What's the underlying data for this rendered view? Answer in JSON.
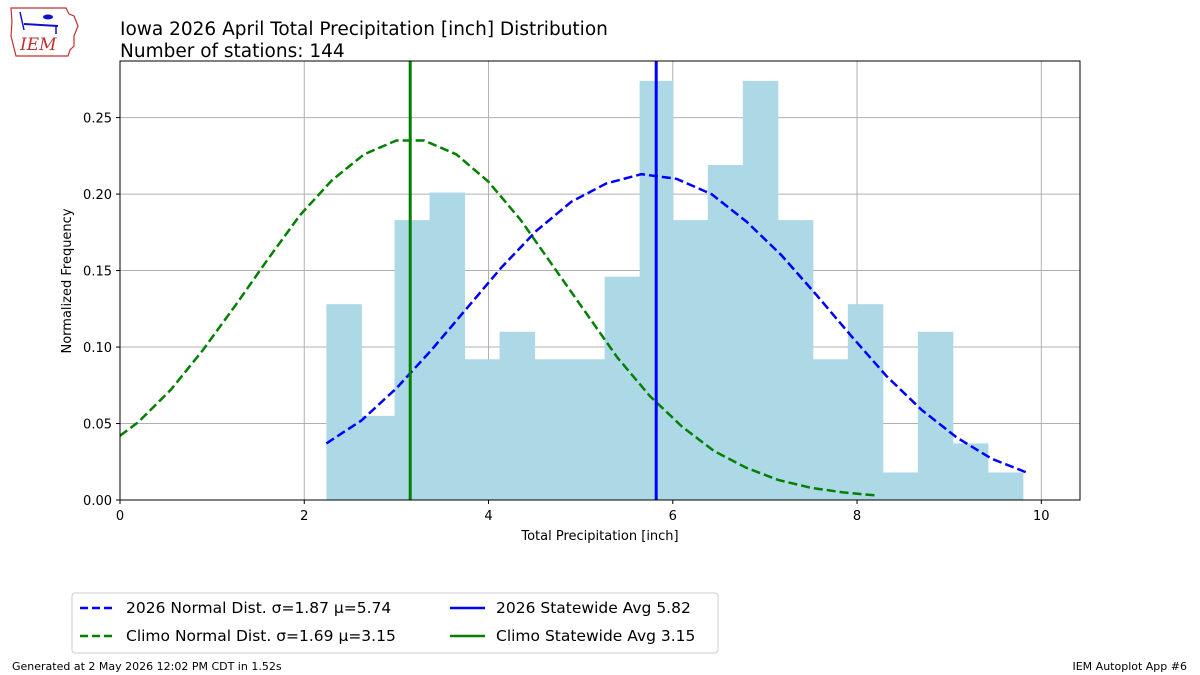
{
  "logo": {
    "text": "IEM"
  },
  "footer": {
    "left": "Generated at 2 May 2026 12:02 PM CDT in 1.52s",
    "right": "IEM Autoplot App #6"
  },
  "chart_data": {
    "type": "bar",
    "title": "Iowa 2026 April Total Precipitation [inch] Distribution",
    "subtitle": "Number of stations: 144",
    "xlabel": "Total Precipitation [inch]",
    "ylabel": "Normalized Frequency",
    "xlim": [
      0,
      10.42
    ],
    "ylim": [
      0,
      0.287
    ],
    "xticks": [
      0,
      2,
      4,
      6,
      8,
      10
    ],
    "yticks": [
      0.0,
      0.05,
      0.1,
      0.15,
      0.2,
      0.25
    ],
    "ytick_labels": [
      "0.00",
      "0.05",
      "0.10",
      "0.15",
      "0.20",
      "0.25"
    ],
    "grid": true,
    "legend_position": "below plot, left",
    "histogram": {
      "color": "#add8e6",
      "bin_edges": [
        2.24,
        2.62,
        2.98,
        3.36,
        3.74,
        4.12,
        4.5,
        4.88,
        5.26,
        5.64,
        6.0,
        6.38,
        6.76,
        7.14,
        7.52,
        7.9,
        8.28,
        8.66,
        9.04,
        9.42,
        9.8
      ],
      "values": [
        0.128,
        0.055,
        0.183,
        0.201,
        0.092,
        0.11,
        0.092,
        0.092,
        0.146,
        0.274,
        0.183,
        0.219,
        0.274,
        0.183,
        0.092,
        0.128,
        0.018,
        0.11,
        0.037,
        0.018
      ]
    },
    "series": [
      {
        "name": "2026 Normal Dist. σ=1.87 μ=5.74",
        "style": "dashed",
        "color": "#0000ff",
        "x": [
          2.24,
          2.62,
          3.0,
          3.38,
          3.76,
          4.14,
          4.52,
          4.9,
          5.28,
          5.66,
          6.04,
          6.42,
          6.8,
          7.18,
          7.56,
          7.94,
          8.32,
          8.7,
          9.08,
          9.46,
          9.84
        ],
        "y": [
          0.037,
          0.052,
          0.073,
          0.098,
          0.125,
          0.152,
          0.176,
          0.195,
          0.207,
          0.213,
          0.21,
          0.2,
          0.182,
          0.16,
          0.134,
          0.107,
          0.081,
          0.059,
          0.041,
          0.027,
          0.018
        ]
      },
      {
        "name": "Climo Normal Dist. σ=1.69 μ=3.15",
        "style": "dashed",
        "color": "#008000",
        "x": [
          0.0,
          0.2,
          0.55,
          0.9,
          1.25,
          1.6,
          1.95,
          2.3,
          2.65,
          3.0,
          3.3,
          3.65,
          4.0,
          4.35,
          4.7,
          5.05,
          5.4,
          5.75,
          6.1,
          6.45,
          6.8,
          7.15,
          7.5,
          7.85,
          8.2
        ],
        "y": [
          0.042,
          0.051,
          0.072,
          0.098,
          0.127,
          0.157,
          0.186,
          0.209,
          0.226,
          0.235,
          0.235,
          0.226,
          0.208,
          0.183,
          0.153,
          0.123,
          0.093,
          0.068,
          0.048,
          0.032,
          0.021,
          0.013,
          0.008,
          0.005,
          0.003
        ]
      },
      {
        "name": "2026 Statewide Avg 5.82",
        "style": "solid",
        "color": "#0000ff",
        "vline": 5.82
      },
      {
        "name": "Climo Statewide Avg 3.15",
        "style": "solid",
        "color": "#008000",
        "vline": 3.15
      }
    ]
  }
}
